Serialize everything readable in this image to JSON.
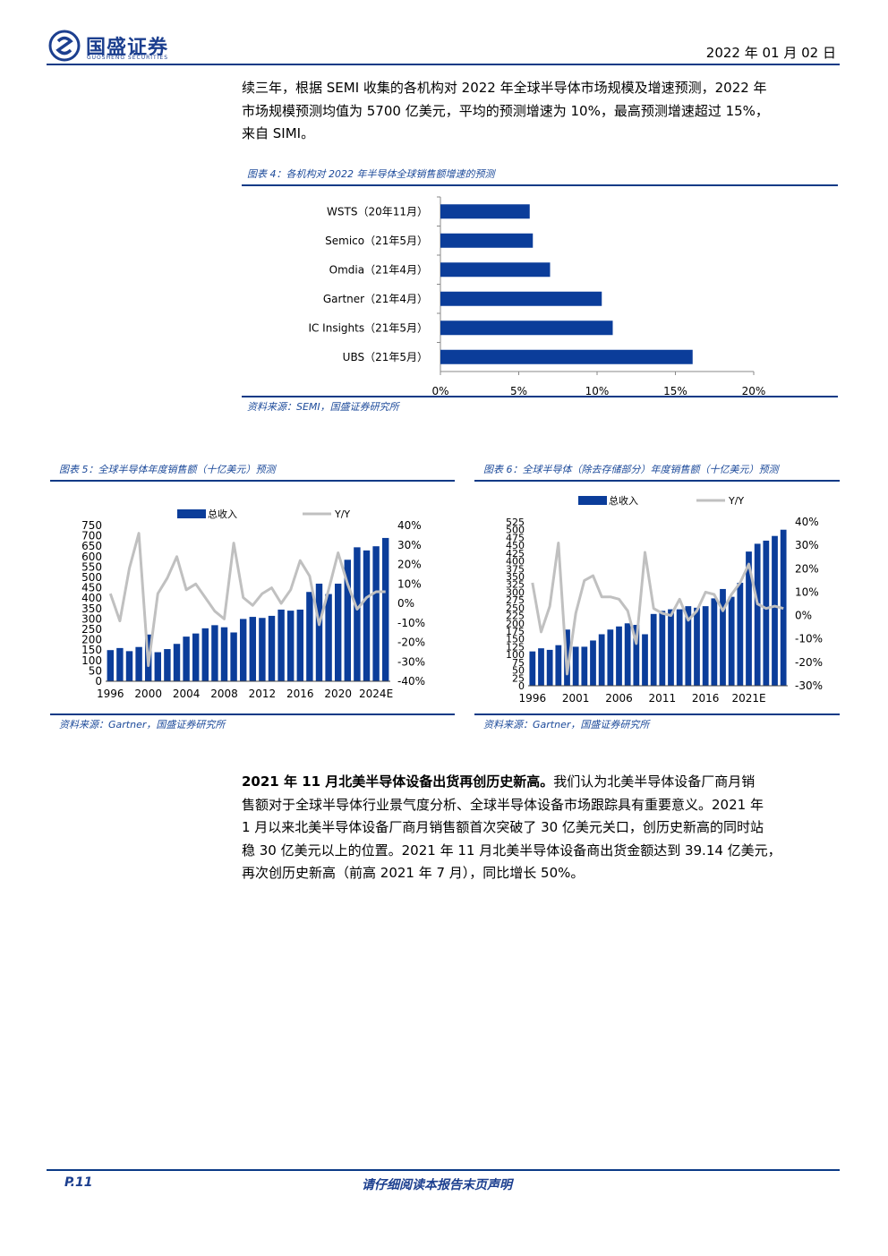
{
  "header": {
    "logo_name": "国盛证券",
    "logo_sub": "GUOSHENG SECURITIES",
    "date": "2022 年 01 月 02 日"
  },
  "intro_paragraph": {
    "lines": [
      "续三年，根据 SEMI 收集的各机构对 2022 年全球半导体市场规模及增速预测，2022 年",
      "市场规模预测均值为 5700 亿美元，平均的预测增速为 10%，最高预测增速超过 15%，",
      "来自 SIMI。"
    ]
  },
  "figure4": {
    "title": "图表 4：各机构对 2022 年半导体全球销售额增速的预测",
    "source": "资料来源：SEMI，国盛证券研究所",
    "chart_data": {
      "type": "bar",
      "orientation": "horizontal",
      "categories": [
        "WSTS（20年11月）",
        "Semico（21年5月）",
        "Omdia（21年4月）",
        "Gartner（21年4月）",
        "IC Insights（21年5月）",
        "UBS（21年5月）"
      ],
      "values": [
        5.7,
        5.9,
        7.0,
        10.3,
        11.0,
        16.1
      ],
      "xticks": [
        "0%",
        "5%",
        "10%",
        "15%",
        "20%"
      ],
      "xlim": [
        0,
        20
      ],
      "color": "#0b3d9a"
    }
  },
  "figure5": {
    "title": "图表 5：全球半导体年度销售额（十亿美元）预测",
    "source": "资料来源：Gartner，国盛证券研究所",
    "chart_data": {
      "type": "bar+line",
      "legend": [
        "总收入",
        "Y/Y"
      ],
      "x": [
        "1996",
        "1997",
        "1998",
        "1999",
        "2000",
        "2001",
        "2002",
        "2003",
        "2004",
        "2005",
        "2006",
        "2007",
        "2008",
        "2009",
        "2010",
        "2011",
        "2012",
        "2013",
        "2014",
        "2015",
        "2016",
        "2017",
        "2018",
        "2019",
        "2020",
        "2021E",
        "2022E",
        "2023E",
        "2024E",
        "2025E"
      ],
      "xtick_labels": [
        "1996",
        "2000",
        "2004",
        "2008",
        "2012",
        "2016",
        "2020",
        "2024E"
      ],
      "series": [
        {
          "name": "总收入",
          "type": "bar",
          "axis": "left",
          "values": [
            150,
            160,
            145,
            165,
            225,
            140,
            155,
            180,
            215,
            230,
            255,
            270,
            260,
            235,
            300,
            310,
            305,
            315,
            345,
            340,
            345,
            430,
            470,
            420,
            470,
            585,
            645,
            630,
            650,
            690
          ]
        },
        {
          "name": "Y/Y",
          "type": "line",
          "axis": "right",
          "values": [
            5,
            -9,
            18,
            36,
            -32,
            5,
            13,
            24,
            7,
            10,
            3,
            -4,
            -8,
            31,
            3,
            -1,
            5,
            8,
            0,
            7,
            22,
            14,
            -11,
            7,
            26,
            10,
            -3,
            3,
            6,
            6
          ]
        }
      ],
      "ylim_left": [
        0,
        750
      ],
      "yticks_left": [
        "0",
        "50",
        "100",
        "150",
        "200",
        "250",
        "300",
        "350",
        "400",
        "450",
        "500",
        "550",
        "600",
        "650",
        "700",
        "750"
      ],
      "ylim_right": [
        -40,
        40
      ],
      "yticks_right": [
        "40%",
        "30%",
        "20%",
        "10%",
        "0%",
        "-10%",
        "-20%",
        "-30%",
        "-40%"
      ],
      "colors": {
        "bar": "#0b3d9a",
        "line": "#c0c0c0"
      }
    }
  },
  "figure6": {
    "title": "图表 6：全球半导体（除去存储部分）年度销售额（十亿美元）预测",
    "source": "资料来源：Gartner，国盛证券研究所",
    "chart_data": {
      "type": "bar+line",
      "legend": [
        "总收入",
        "Y/Y"
      ],
      "x": [
        "1996",
        "1997",
        "1998",
        "1999",
        "2000",
        "2001",
        "2002",
        "2003",
        "2004",
        "2005",
        "2006",
        "2007",
        "2008",
        "2009",
        "2010",
        "2011",
        "2012",
        "2013",
        "2014",
        "2015",
        "2016",
        "2017",
        "2018",
        "2019",
        "2020",
        "2021E",
        "2022E",
        "2023E",
        "2024E",
        "2025E"
      ],
      "xtick_labels": [
        "1996",
        "2001",
        "2006",
        "2011",
        "2016",
        "2021E"
      ],
      "series": [
        {
          "name": "总收入",
          "type": "bar",
          "axis": "left",
          "values": [
            110,
            120,
            115,
            130,
            180,
            125,
            125,
            145,
            165,
            180,
            190,
            200,
            195,
            165,
            230,
            240,
            245,
            245,
            255,
            250,
            255,
            280,
            310,
            285,
            330,
            430,
            455,
            465,
            480,
            500
          ]
        },
        {
          "name": "Y/Y",
          "type": "line",
          "axis": "right",
          "values": [
            14,
            -7,
            4,
            31,
            -25,
            1,
            15,
            17,
            8,
            8,
            7,
            2,
            -12,
            27,
            3,
            1,
            0,
            7,
            -2,
            2,
            10,
            9,
            2,
            9,
            14,
            22,
            5,
            3,
            4,
            3
          ]
        }
      ],
      "ylim_left": [
        0,
        525
      ],
      "yticks_left": [
        "0",
        "25",
        "50",
        "75",
        "100",
        "125",
        "150",
        "175",
        "200",
        "225",
        "250",
        "275",
        "300",
        "325",
        "350",
        "375",
        "400",
        "425",
        "450",
        "475",
        "500",
        "525"
      ],
      "ylim_right": [
        -30,
        40
      ],
      "yticks_right": [
        "40%",
        "30%",
        "20%",
        "10%",
        "0%",
        "-10%",
        "-20%",
        "-30%"
      ],
      "colors": {
        "bar": "#0b3d9a",
        "line": "#c0c0c0"
      }
    }
  },
  "body_paragraph": {
    "bold_lead": "2021 年 11 月北美半导体设备出货再创历史新高。",
    "lines": [
      "我们认为北美半导体设备厂商月销",
      "售额对于全球半导体行业景气度分析、全球半导体设备市场跟踪具有重要意义。2021 年",
      "1 月以来北美半导体设备厂商月销售额首次突破了 30 亿美元关口，创历史新高的同时站",
      "稳 30 亿美元以上的位置。2021 年 11 月北美半导体设备商出货金额达到 39.14 亿美元，",
      "再次创历史新高（前高 2021 年 7 月），同比增长 50%。"
    ]
  },
  "footer": {
    "page": "P.11",
    "notice": "请仔细阅读本报告末页声明"
  }
}
